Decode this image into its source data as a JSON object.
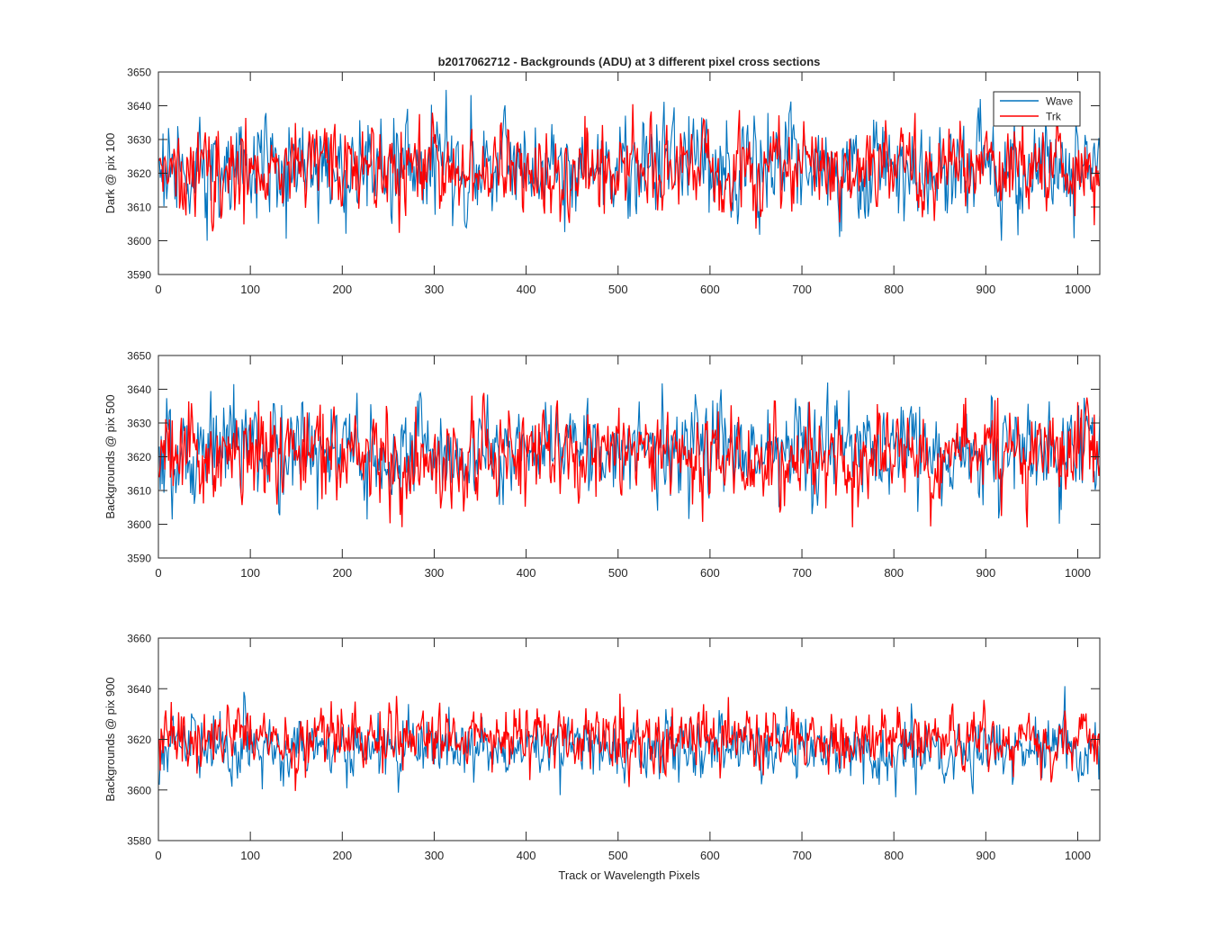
{
  "figure": {
    "title": "b2017062712 - Backgrounds (ADU) at 3 different pixel cross sections",
    "xlabel": "Track or Wavelength Pixels"
  },
  "colors": {
    "wave": "#0072BD",
    "trk": "#FF0000",
    "axis": "#262626"
  },
  "chart_data": [
    {
      "type": "line",
      "title": "b2017062712 - Backgrounds (ADU) at 3 different pixel cross sections",
      "xlabel": "",
      "ylabel": "Dark @ pix 100",
      "xlim": [
        0,
        1024
      ],
      "ylim": [
        3590,
        3650
      ],
      "xticks": [
        0,
        100,
        200,
        300,
        400,
        500,
        600,
        700,
        800,
        900,
        1000
      ],
      "yticks": [
        3590,
        3600,
        3610,
        3620,
        3630,
        3640,
        3650
      ],
      "grid": false,
      "legend": {
        "location": "top-right",
        "entries": [
          "Wave",
          "Trk"
        ]
      },
      "series": [
        {
          "name": "Wave",
          "color": "#0072BD",
          "n_points": 1024,
          "mean": 3622,
          "std": 7.5,
          "min": 3600,
          "max": 3649
        },
        {
          "name": "Trk",
          "color": "#FF0000",
          "n_points": 1024,
          "mean": 3621,
          "std": 6.5,
          "min": 3595,
          "max": 3649
        }
      ]
    },
    {
      "type": "line",
      "xlabel": "",
      "ylabel": "Backgrounds @ pix 500",
      "xlim": [
        0,
        1024
      ],
      "ylim": [
        3590,
        3650
      ],
      "xticks": [
        0,
        100,
        200,
        300,
        400,
        500,
        600,
        700,
        800,
        900,
        1000
      ],
      "yticks": [
        3590,
        3600,
        3610,
        3620,
        3630,
        3640,
        3650
      ],
      "grid": false,
      "series": [
        {
          "name": "Wave",
          "color": "#0072BD",
          "n_points": 1024,
          "mean": 3622,
          "std": 7.0,
          "min": 3595,
          "max": 3649
        },
        {
          "name": "Trk",
          "color": "#FF0000",
          "n_points": 1024,
          "mean": 3621,
          "std": 7.0,
          "min": 3592,
          "max": 3646
        }
      ]
    },
    {
      "type": "line",
      "xlabel": "Track or Wavelength Pixels",
      "ylabel": "Backgrounds @ pix 900",
      "xlim": [
        0,
        1024
      ],
      "ylim": [
        3580,
        3660
      ],
      "xticks": [
        0,
        100,
        200,
        300,
        400,
        500,
        600,
        700,
        800,
        900,
        1000
      ],
      "yticks": [
        3580,
        3600,
        3620,
        3640,
        3660
      ],
      "grid": false,
      "series": [
        {
          "name": "Wave",
          "color": "#0072BD",
          "n_points": 1024,
          "mean": 3616,
          "std": 6.0,
          "min": 3589,
          "max": 3641
        },
        {
          "name": "Trk",
          "color": "#FF0000",
          "n_points": 1024,
          "mean": 3620,
          "std": 6.0,
          "min": 3596,
          "max": 3650
        }
      ]
    }
  ]
}
